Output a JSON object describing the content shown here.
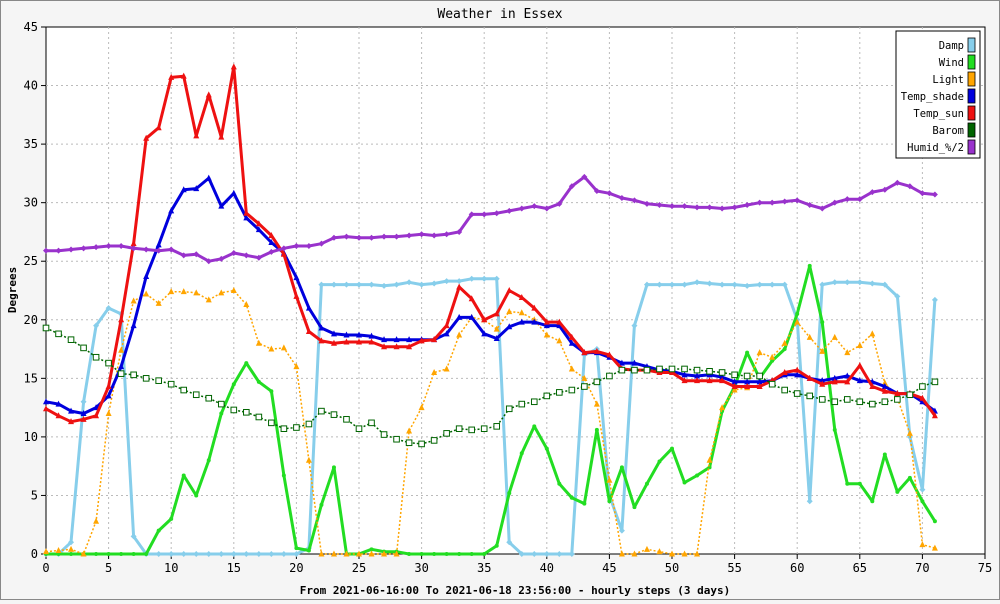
{
  "chart_data": {
    "type": "line",
    "title": "Weather in Essex",
    "xlabel": "From 2021-06-16:00 To 2021-06-18 23:56:00 - hourly steps (3 days)",
    "ylabel": "Degrees",
    "xlim": [
      0,
      75
    ],
    "ylim": [
      0,
      45
    ],
    "xticks": [
      0,
      5,
      10,
      15,
      20,
      25,
      30,
      35,
      40,
      45,
      50,
      55,
      60,
      65,
      70,
      75
    ],
    "yticks": [
      0,
      5,
      10,
      15,
      20,
      25,
      30,
      35,
      40,
      45
    ],
    "grid": true,
    "legend_position": "top-right",
    "series": [
      {
        "name": "Damp",
        "color": "#87ceeb",
        "marker": "diamond",
        "dash": "",
        "width": 3,
        "values": [
          0,
          0,
          1,
          13,
          19.5,
          21,
          20.5,
          1.5,
          0,
          0,
          0,
          0,
          0,
          0,
          0,
          0,
          0,
          0,
          0,
          0,
          0,
          0.5,
          23,
          23,
          23,
          23,
          23,
          22.9,
          23,
          23.2,
          23,
          23.1,
          23.3,
          23.3,
          23.5,
          23.5,
          23.5,
          1,
          0,
          0,
          0,
          0,
          0,
          17,
          17.5,
          5,
          2,
          19.5,
          23,
          23,
          23,
          23,
          23.2,
          23.1,
          23,
          23,
          22.9,
          23,
          23,
          23,
          20,
          4.5,
          23,
          23.2,
          23.2,
          23.2,
          23.1,
          23,
          22,
          10,
          5.5,
          21.7
        ]
      },
      {
        "name": "Wind",
        "color": "#22dd22",
        "marker": "dot",
        "dash": "",
        "width": 3,
        "values": [
          0,
          0,
          0,
          0,
          0,
          0,
          0,
          0,
          0,
          2,
          3,
          6.7,
          5,
          8,
          12,
          14.5,
          16.3,
          14.7,
          13.9,
          6.7,
          0.5,
          0.3,
          4.2,
          7.4,
          0,
          0,
          0.4,
          0.2,
          0.2,
          0,
          0,
          0,
          0,
          0,
          0,
          0,
          0.7,
          5.2,
          8.6,
          10.9,
          9,
          6,
          4.8,
          4.3,
          10.6,
          4.5,
          7.4,
          4,
          6,
          7.9,
          9,
          6.1,
          6.7,
          7.4,
          12.2,
          14.3,
          17.2,
          15,
          16.5,
          17.5,
          20.5,
          24.6,
          19.8,
          10.6,
          6,
          6,
          4.5,
          8.5,
          5.3,
          6.5,
          4.5,
          2.8
        ]
      },
      {
        "name": "Light",
        "color": "#ffa500",
        "marker": "triangle",
        "dash": "2,2",
        "width": 1.5,
        "values": [
          0.2,
          0.3,
          0.4,
          0,
          2.8,
          12,
          17.4,
          21.6,
          22.2,
          21.4,
          22.4,
          22.4,
          22.3,
          21.7,
          22.3,
          22.5,
          21.3,
          18,
          17.5,
          17.6,
          16,
          8,
          0,
          0,
          0,
          0,
          0,
          0,
          0,
          10.5,
          12.5,
          15.5,
          15.8,
          18.7,
          20.2,
          20,
          19.2,
          20.7,
          20.6,
          20,
          18.7,
          18.2,
          15.8,
          15,
          12.8,
          6.3,
          0,
          0,
          0.4,
          0.2,
          0,
          0,
          0,
          8,
          12.5,
          14,
          14.2,
          17.2,
          16.8,
          18,
          19.8,
          18.5,
          17.3,
          18.5,
          17.2,
          17.8,
          18.8,
          14.6,
          13.3,
          10.3,
          0.8,
          0.5
        ]
      },
      {
        "name": "Temp_shade",
        "color": "#0000dd",
        "marker": "triangle",
        "dash": "",
        "width": 3,
        "values": [
          13,
          12.8,
          12.2,
          12,
          12.5,
          13.5,
          16,
          19.5,
          23.7,
          26.4,
          29.3,
          31.1,
          31.2,
          32.1,
          29.7,
          30.8,
          28.7,
          27.7,
          26.6,
          25.7,
          23.6,
          21,
          19.3,
          18.8,
          18.7,
          18.7,
          18.6,
          18.3,
          18.3,
          18.3,
          18.3,
          18.3,
          18.8,
          20.2,
          20.2,
          18.8,
          18.4,
          19.4,
          19.8,
          19.8,
          19.5,
          19.5,
          18,
          17.2,
          17.2,
          16.8,
          16.3,
          16.3,
          16,
          15.7,
          15.6,
          15.3,
          15.2,
          15.3,
          15.1,
          14.7,
          14.7,
          14.7,
          14.8,
          15.3,
          15.3,
          15,
          14.8,
          15,
          15.2,
          14.8,
          14.7,
          14.3,
          13.7,
          13.7,
          13,
          12.2
        ]
      },
      {
        "name": "Temp_sun",
        "color": "#ee1111",
        "marker": "triangle",
        "dash": "",
        "width": 3,
        "values": [
          12.4,
          11.8,
          11.3,
          11.5,
          11.8,
          14.3,
          20,
          26.5,
          35.5,
          36.4,
          40.7,
          40.8,
          35.7,
          39.2,
          35.6,
          41.6,
          29.1,
          28.2,
          27.2,
          25.6,
          22,
          19,
          18.2,
          18,
          18.1,
          18.1,
          18.1,
          17.7,
          17.7,
          17.7,
          18.2,
          18.3,
          19.5,
          22.8,
          21.8,
          20,
          20.5,
          22.5,
          21.9,
          21,
          19.8,
          19.8,
          18.5,
          17.2,
          17.3,
          17,
          15.8,
          15.7,
          15.7,
          15.5,
          15.5,
          14.8,
          14.8,
          14.8,
          14.8,
          14.3,
          14.3,
          14.3,
          14.8,
          15.5,
          15.7,
          15,
          14.5,
          14.7,
          14.7,
          16.1,
          14.3,
          13.9,
          13.7,
          13.7,
          13.3,
          11.8
        ]
      },
      {
        "name": "Barom",
        "color": "#006400",
        "marker": "square",
        "dash": "2,2",
        "width": 1.5,
        "values": [
          19.3,
          18.8,
          18.3,
          17.6,
          16.8,
          16.3,
          15.4,
          15.3,
          15,
          14.8,
          14.5,
          14,
          13.6,
          13.3,
          12.8,
          12.3,
          12.1,
          11.7,
          11.2,
          10.7,
          10.8,
          11.1,
          12.2,
          11.9,
          11.5,
          10.7,
          11.2,
          10.2,
          9.8,
          9.5,
          9.4,
          9.7,
          10.3,
          10.7,
          10.6,
          10.7,
          10.9,
          12.4,
          12.8,
          13,
          13.5,
          13.8,
          14,
          14.3,
          14.7,
          15.2,
          15.7,
          15.7,
          15.7,
          15.8,
          15.8,
          15.8,
          15.7,
          15.6,
          15.5,
          15.3,
          15.2,
          15.2,
          14.5,
          14,
          13.7,
          13.5,
          13.2,
          13,
          13.2,
          13,
          12.8,
          13,
          13.2,
          13.6,
          14.3,
          14.7
        ]
      },
      {
        "name": "Humid_%/2",
        "color": "#9932cc",
        "marker": "diamond",
        "dash": "",
        "width": 3,
        "values": [
          25.9,
          25.9,
          26,
          26.1,
          26.2,
          26.3,
          26.3,
          26.1,
          26,
          25.9,
          26,
          25.5,
          25.6,
          25,
          25.2,
          25.7,
          25.5,
          25.3,
          25.8,
          26.1,
          26.3,
          26.3,
          26.5,
          27,
          27.1,
          27,
          27,
          27.1,
          27.1,
          27.2,
          27.3,
          27.2,
          27.3,
          27.5,
          29,
          29,
          29.1,
          29.3,
          29.5,
          29.7,
          29.5,
          29.9,
          31.4,
          32.2,
          31,
          30.8,
          30.4,
          30.2,
          29.9,
          29.8,
          29.7,
          29.7,
          29.6,
          29.6,
          29.5,
          29.6,
          29.8,
          30,
          30,
          30.1,
          30.2,
          29.8,
          29.5,
          30,
          30.3,
          30.3,
          30.9,
          31.1,
          31.7,
          31.4,
          30.8,
          30.7
        ]
      }
    ]
  }
}
